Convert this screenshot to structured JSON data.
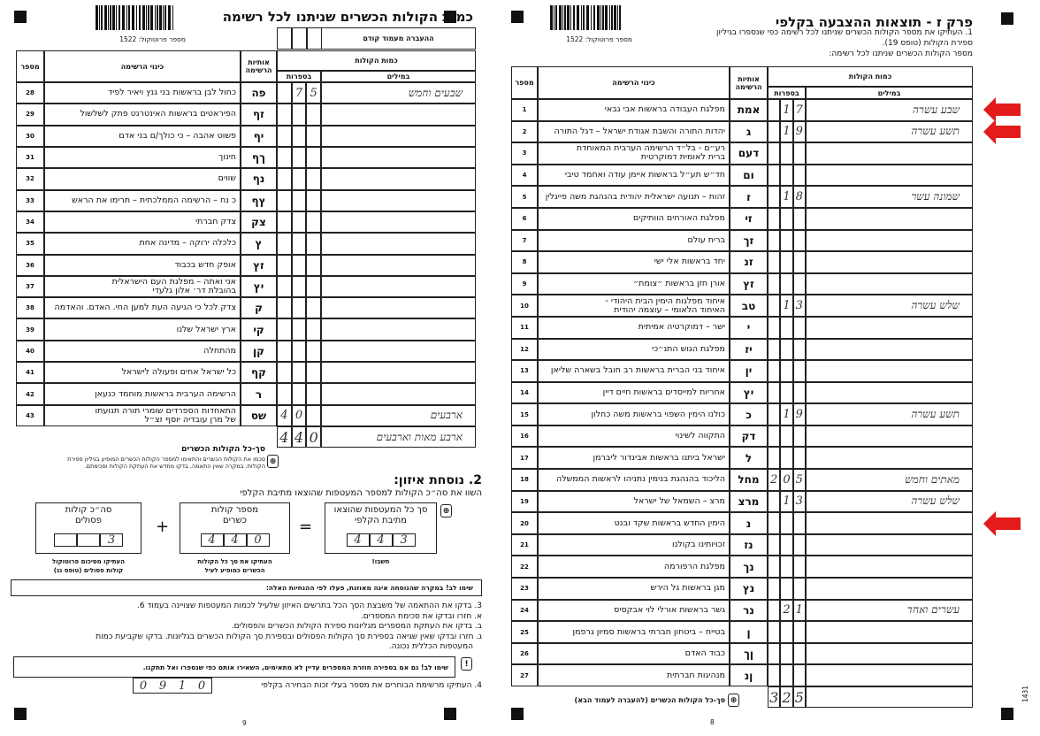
{
  "colors": {
    "ink": "#111111",
    "arrow": "#e31b1b",
    "handwriting": "#333333"
  },
  "left_page": {
    "title": "כמות הקולות הכשרים שניתנו לכל רשימה",
    "protocol_label": "מספר פרוטוקול: 1522",
    "carry_over_label": "ההעברה מעמוד קודם",
    "headers": {
      "number": "מספר",
      "list_name": "כינוי הרשימה",
      "letters": "אותיות\nהרשימה",
      "votes": "כמות הקולות",
      "in_digits": "בספרות",
      "in_words": "במילים"
    },
    "rows": [
      {
        "num": "28",
        "letters": "פה",
        "name": "כחול לבן בראשות בני גנץ ויאיר לפיד",
        "digits": [
          "",
          "7",
          "5"
        ],
        "words": "שבעים וחמש"
      },
      {
        "num": "29",
        "letters": "זף",
        "name": "הפיראטים בראשות האינטרנט פתק לשלשול",
        "digits": [
          "",
          "",
          ""
        ],
        "words": ""
      },
      {
        "num": "30",
        "letters": "יף",
        "name": "פשוט אהבה – כי כולך/ם בני אדם",
        "digits": [
          "",
          "",
          ""
        ],
        "words": ""
      },
      {
        "num": "31",
        "letters": "ךף",
        "name": "חינוך",
        "digits": [
          "",
          "",
          ""
        ],
        "words": ""
      },
      {
        "num": "32",
        "letters": "נף",
        "name": "שווים",
        "digits": [
          "",
          "",
          ""
        ],
        "words": ""
      },
      {
        "num": "33",
        "letters": "ץף",
        "name": "כ נח – הרשימה הממלכתית – תרימו את הראש",
        "digits": [
          "",
          "",
          ""
        ],
        "words": ""
      },
      {
        "num": "34",
        "letters": "צק",
        "name": "צדק חברתי",
        "digits": [
          "",
          "",
          ""
        ],
        "words": ""
      },
      {
        "num": "35",
        "letters": "ץ",
        "name": "כלכלה ירוקה – מדינה אחת",
        "digits": [
          "",
          "",
          ""
        ],
        "words": ""
      },
      {
        "num": "36",
        "letters": "זץ",
        "name": "אופק חדש בכבוד",
        "digits": [
          "",
          "",
          ""
        ],
        "words": ""
      },
      {
        "num": "37",
        "letters": "יץ",
        "name": "אני ואתה – מפלגת העם הישראלית\nבהובלת דר׳ אלון גלעדי",
        "digits": [
          "",
          "",
          ""
        ],
        "words": ""
      },
      {
        "num": "38",
        "letters": "ק",
        "name": "צדק לכל כי הגיעה העת למען החי. האדם. והאדמה",
        "digits": [
          "",
          "",
          ""
        ],
        "words": ""
      },
      {
        "num": "39",
        "letters": "קי",
        "name": "ארץ ישראל שלנו",
        "digits": [
          "",
          "",
          ""
        ],
        "words": ""
      },
      {
        "num": "40",
        "letters": "קן",
        "name": "מהתחלה",
        "digits": [
          "",
          "",
          ""
        ],
        "words": ""
      },
      {
        "num": "41",
        "letters": "קף",
        "name": "כל ישראל אחים ופעולה לישראל",
        "digits": [
          "",
          "",
          ""
        ],
        "words": ""
      },
      {
        "num": "42",
        "letters": "ר",
        "name": "הרשימה הערבית בראשות מוחמד כנעאן",
        "digits": [
          "",
          "",
          ""
        ],
        "words": ""
      },
      {
        "num": "43",
        "letters": "שס",
        "name": "התאחדות הספרדים שומרי תורה תנועתו\nשל מרן עובדיה יוסף זצ״ל",
        "digits": [
          "4",
          "0",
          ""
        ],
        "words": "ארבעים"
      }
    ],
    "total": {
      "digits": [
        "4",
        "4",
        "0"
      ],
      "words": "ארבע מאות וארבעים"
    },
    "total_label": "סך-כל הקולות הכשרים",
    "total_instructions": "סכמו את הקולות הכשרים והתאימו למספר הקולות הכשרים המופיע בגיליון ספירת\nהקולות. במקרה שאין התאמה, בדקו מחדש את העתקת הקולות וסכימתם.",
    "balance": {
      "heading": "2. נוסחת איזון:",
      "intro": "השוו את סה״כ הקולות למספר המעטפות שהוצאו מתיבת הקלפי",
      "envelopes_box": {
        "label": "סך כל המעטפות שהוצאו\nמתיבת הקלפי",
        "digits": [
          "4",
          "4",
          "3"
        ],
        "caption": "חשבו!"
      },
      "valid_box": {
        "label": "מספר קולות\nכשרים",
        "digits": [
          "4",
          "4",
          "0"
        ],
        "caption": "העתיקו את סך כל הקולות\nהכשרים כמופיע לעיל"
      },
      "invalid_box": {
        "label": "סה״כ קולות\nפסולים",
        "digits": [
          "",
          "",
          "3"
        ],
        "caption": "העתיקו מסיכום פרוטוקול\nקולות פסולים (טופס נג)"
      },
      "equals": "=",
      "plus": "+"
    },
    "note1": "שימו לב! במקרה שהנוסחה אינה מאוזנת, פעלו לפי ההנחיות האלה:",
    "steps": [
      "3. בדקו את ההתאמה של משבצת הסך הכל בתרשים האיזון שלעיל לכמות המעטפות שצויינה בעמוד 6.",
      "א. חזרו ובדקו את סכימת המספרים.",
      "ב. בדקו את העתקת המספרים מגליונות ספירת הקולות הכשרים והפסולים.",
      "ג. חזרו ובדקו שאין שגיאה בספירת סך הקולות הפסולים ובספירת סך הקולות הכשרים בגליונות. בדקו שקביעת כמות",
      "המעטפות הכללית נכונה."
    ],
    "note2": "שימו לב! גם אם בספירה חוזרת המספרים עדיין לא מתאימים, השאירו אותם כפי שנספרו ואל תתקנו.",
    "item4": {
      "label": "4. העתיקו מרשימת הבוחרים את מספר בעלי זכות הבחירה בקלפי",
      "digits": [
        "0",
        "9",
        "1",
        "0"
      ]
    },
    "page_number": "9"
  },
  "right_page": {
    "title": "פרק ז - תוצאות ההצבעה בקלפי",
    "intro_lines": [
      "1. העתיקו את מספר הקולות הכשרים שניתנו לכל רשימה כפי שנספרו בגיליון",
      "ספירת הקולות (טופס 19).",
      "מספר הקולות הכשרים שניתנו לכל רשימה:"
    ],
    "protocol_label": "מספר פרוטוקול: 1522",
    "rows": [
      {
        "num": "1",
        "letters": "אמת",
        "name": "מפלגת העבודה בראשות אבי גבאי",
        "digits": [
          "",
          "1",
          "7"
        ],
        "words": "שבע עשרה",
        "flag": true
      },
      {
        "num": "2",
        "letters": "ג",
        "name": "יהדות התורה והשבת אגודת ישראל – דגל התורה",
        "digits": [
          "",
          "1",
          "9"
        ],
        "words": "תשע עשרה",
        "flag": true
      },
      {
        "num": "3",
        "letters": "דעם",
        "name": "רע״ם - בל״ד הרשימה הערבית המאוחדת\nברית לאומית דמוקרטית",
        "digits": [
          "",
          "",
          ""
        ],
        "words": ""
      },
      {
        "num": "4",
        "letters": "ום",
        "name": "חד״ש תע״ל בראשות איימן עודה ואחמד טיבי",
        "digits": [
          "",
          "",
          ""
        ],
        "words": ""
      },
      {
        "num": "5",
        "letters": "ז",
        "name": "זהות – תנועה ישראלית יהודית בהנהגת משה פייגלין",
        "digits": [
          "",
          "1",
          "8"
        ],
        "words": "שמונה עשר"
      },
      {
        "num": "6",
        "letters": "זי",
        "name": "מפלגת האורחים הוותיקים",
        "digits": [
          "",
          "",
          ""
        ],
        "words": ""
      },
      {
        "num": "7",
        "letters": "זך",
        "name": "ברית עולם",
        "digits": [
          "",
          "",
          ""
        ],
        "words": ""
      },
      {
        "num": "8",
        "letters": "זנ",
        "name": "יחד בראשות אלי ישי",
        "digits": [
          "",
          "",
          ""
        ],
        "words": ""
      },
      {
        "num": "9",
        "letters": "זץ",
        "name": "אורן חזן בראשות ״צומת״",
        "digits": [
          "",
          "",
          ""
        ],
        "words": ""
      },
      {
        "num": "10",
        "letters": "טב",
        "name": "איחוד מפלגות הימין הבית היהודי -\nהאיחוד הלאומי – עוצמה יהודית",
        "digits": [
          "",
          "1",
          "3"
        ],
        "words": "שלש עשרה"
      },
      {
        "num": "11",
        "letters": "י",
        "name": "ישר – דמוקרטיה אמיתית",
        "digits": [
          "",
          "",
          ""
        ],
        "words": ""
      },
      {
        "num": "12",
        "letters": "יז",
        "name": "מפלגת הגוש התנ״כי",
        "digits": [
          "",
          "",
          ""
        ],
        "words": ""
      },
      {
        "num": "13",
        "letters": "ין",
        "name": "איחוד בני הברית בראשות רב חובל בשארה שליאן",
        "digits": [
          "",
          "",
          ""
        ],
        "words": ""
      },
      {
        "num": "14",
        "letters": "יץ",
        "name": "אחריות למייסדים בראשות חיים דיין",
        "digits": [
          "",
          "",
          ""
        ],
        "words": ""
      },
      {
        "num": "15",
        "letters": "כ",
        "name": "כולנו הימין השפוי בראשות משה כחלון",
        "digits": [
          "",
          "1",
          "9"
        ],
        "words": "תשע עשרה"
      },
      {
        "num": "16",
        "letters": "דק",
        "name": "התקווה לשינוי",
        "digits": [
          "",
          "",
          ""
        ],
        "words": ""
      },
      {
        "num": "17",
        "letters": "ל",
        "name": "ישראל ביתנו בראשות אביגדור ליברמן",
        "digits": [
          "",
          "",
          ""
        ],
        "words": ""
      },
      {
        "num": "18",
        "letters": "מחל",
        "name": "הליכוד בהנהגת בנימין נתניהו לראשות הממשלה",
        "digits": [
          "2",
          "0",
          "5"
        ],
        "words": "מאתים וחמש"
      },
      {
        "num": "19",
        "letters": "מרצ",
        "name": "מרצ – השמאל של ישראל",
        "digits": [
          "",
          "1",
          "3"
        ],
        "words": "שלש עשרה"
      },
      {
        "num": "20",
        "letters": "נ",
        "name": "הימין החדש בראשות שקד ובנט",
        "digits": [
          "",
          "",
          ""
        ],
        "words": "",
        "flag": true
      },
      {
        "num": "21",
        "letters": "נז",
        "name": "זכויותינו בקולנו",
        "digits": [
          "",
          "",
          ""
        ],
        "words": ""
      },
      {
        "num": "22",
        "letters": "נך",
        "name": "מפלגת הרפורמה",
        "digits": [
          "",
          "",
          ""
        ],
        "words": ""
      },
      {
        "num": "23",
        "letters": "נץ",
        "name": "מגן בראשות גל הירש",
        "digits": [
          "",
          "",
          ""
        ],
        "words": ""
      },
      {
        "num": "24",
        "letters": "נר",
        "name": "גשר בראשות אורלי לוי אבקסיס",
        "digits": [
          "",
          "2",
          "1"
        ],
        "words": "עשרים ואחד"
      },
      {
        "num": "25",
        "letters": "ן",
        "name": "בטייח – ביטחון חברתי בראשות סמיון גרפמן",
        "digits": [
          "",
          "",
          ""
        ],
        "words": ""
      },
      {
        "num": "26",
        "letters": "ןך",
        "name": "כבוד האדם",
        "digits": [
          "",
          "",
          ""
        ],
        "words": ""
      },
      {
        "num": "27",
        "letters": "ןנ",
        "name": "מנהיגות חברתית",
        "digits": [
          "",
          "",
          ""
        ],
        "words": ""
      }
    ],
    "total": {
      "digits": [
        "3",
        "2",
        "5"
      ],
      "words": ""
    },
    "total_label": "סך-כל הקולות הכשרים (להעברה לעמוד הבא)",
    "page_number": "8",
    "side_stamp": "1431"
  },
  "icons": {
    "info": "speech-plus-icon",
    "warning": "speech-exclamation-icon",
    "marker": "red-arrow-left-icon",
    "barcode": "barcode"
  }
}
